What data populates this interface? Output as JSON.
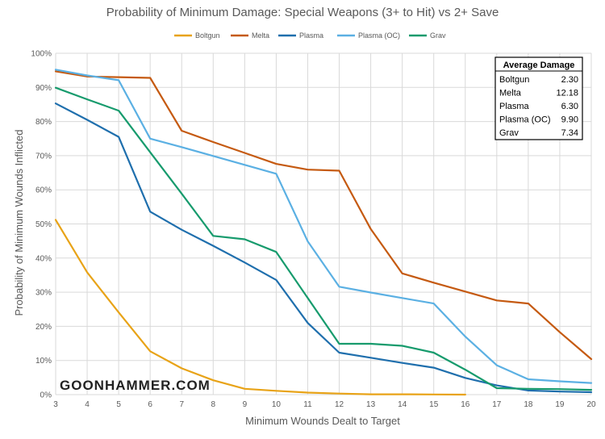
{
  "chart_data": {
    "type": "line",
    "title": "Probability of Minimum Damage: Special Weapons (3+ to Hit) vs 2+ Save",
    "xlabel": "Minimum Wounds Dealt to Target",
    "ylabel": "Probability of Minimum Wounds Inflicted",
    "x": [
      3,
      4,
      5,
      6,
      7,
      8,
      9,
      10,
      11,
      12,
      13,
      14,
      15,
      16,
      17,
      18,
      19,
      20
    ],
    "ylim": [
      0,
      100
    ],
    "yticks": [
      "0%",
      "10%",
      "20%",
      "30%",
      "40%",
      "50%",
      "60%",
      "70%",
      "80%",
      "90%",
      "100%"
    ],
    "series": [
      {
        "name": "Boltgun",
        "color": "#e8a317",
        "values": [
          51.2,
          35.8,
          24.1,
          12.7,
          7.7,
          4.2,
          1.7,
          1.1,
          0.6,
          0.3,
          0.1,
          0.1,
          0.05,
          0.0,
          null,
          null,
          null,
          null
        ]
      },
      {
        "name": "Melta",
        "color": "#c55a11",
        "values": [
          94.7,
          93.2,
          93.0,
          92.8,
          77.3,
          74.0,
          70.8,
          67.6,
          65.9,
          65.6,
          48.5,
          35.5,
          32.8,
          30.2,
          27.6,
          26.7,
          18.3,
          10.4
        ]
      },
      {
        "name": "Plasma",
        "color": "#1f6fad",
        "values": [
          85.3,
          80.5,
          75.5,
          53.6,
          48.3,
          43.6,
          38.7,
          33.6,
          21.0,
          12.3,
          10.8,
          9.3,
          7.9,
          4.9,
          2.7,
          1.2,
          0.9,
          0.7
        ]
      },
      {
        "name": "Plasma (OC)",
        "color": "#5bb0e3",
        "values": [
          95.2,
          93.5,
          92.1,
          75.0,
          72.5,
          69.9,
          67.3,
          64.7,
          44.9,
          31.6,
          29.9,
          28.3,
          26.7,
          17.0,
          8.6,
          4.5,
          3.9,
          3.4
        ]
      },
      {
        "name": "Grav",
        "color": "#179b6d",
        "values": [
          89.9,
          86.5,
          83.2,
          71.0,
          58.9,
          46.5,
          45.5,
          41.8,
          28.3,
          14.9,
          14.9,
          14.3,
          12.3,
          7.3,
          1.9,
          1.7,
          1.6,
          1.4
        ]
      }
    ],
    "legend": {
      "placement": "top-center",
      "entries": [
        "Boltgun",
        "Melta",
        "Plasma",
        "Plasma (OC)",
        "Grav"
      ]
    },
    "table": {
      "header": "Average Damage",
      "rows": [
        {
          "label": "Boltgun",
          "value": "2.30"
        },
        {
          "label": "Melta",
          "value": "12.18"
        },
        {
          "label": "Plasma",
          "value": "6.30"
        },
        {
          "label": "Plasma (OC)",
          "value": "9.90"
        },
        {
          "label": "Grav",
          "value": "7.34"
        }
      ]
    },
    "watermark": "GOONHAMMER.COM",
    "grid": true
  }
}
